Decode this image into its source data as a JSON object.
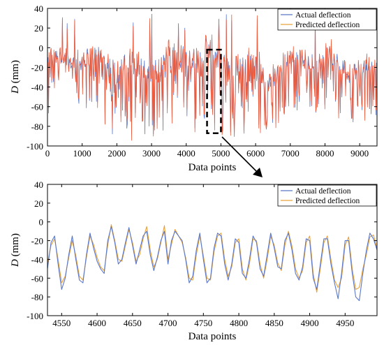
{
  "colors": {
    "actual": "#5a78c8",
    "predicted": "#e8a23c",
    "predicted_top": "#ee5a3a",
    "annotation": "#000000"
  },
  "chart_data": [
    {
      "type": "line",
      "xlabel": "Data points",
      "ylabel_var": "D",
      "ylabel_unit": " (mm)",
      "xlim": [
        0,
        9500
      ],
      "ylim": [
        -100,
        40
      ],
      "xticks": [
        "0",
        "1000",
        "2000",
        "3000",
        "4000",
        "5000",
        "6000",
        "7000",
        "8000",
        "9000"
      ],
      "xtick_values": [
        0,
        1000,
        2000,
        3000,
        4000,
        5000,
        6000,
        7000,
        8000,
        9000
      ],
      "yticks": [
        "40",
        "20",
        "0",
        "-20",
        "-40",
        "-60",
        "-80",
        "-100"
      ],
      "ytick_values": [
        40,
        20,
        0,
        -20,
        -40,
        -60,
        -80,
        -100
      ],
      "legend_position": "top-right",
      "series": [
        {
          "name": "Actual deflection"
        },
        {
          "name": "Predicted deflection"
        }
      ],
      "zoom_box_x": [
        4600,
        5000
      ],
      "zoom_box_y": [
        -87,
        -2
      ]
    },
    {
      "type": "line",
      "xlabel": "Data points",
      "ylabel_var": "D",
      "ylabel_unit": " (mm)",
      "xlim": [
        4530,
        4995
      ],
      "ylim": [
        -100,
        40
      ],
      "xticks": [
        "4550",
        "4600",
        "4650",
        "4700",
        "4750",
        "4800",
        "4850",
        "4900",
        "4950"
      ],
      "xtick_values": [
        4550,
        4600,
        4650,
        4700,
        4750,
        4800,
        4850,
        4900,
        4950
      ],
      "yticks": [
        "40",
        "20",
        "0",
        "-20",
        "-40",
        "-60",
        "-80",
        "-100"
      ],
      "ytick_values": [
        40,
        20,
        0,
        -20,
        -40,
        -60,
        -80,
        -100
      ],
      "legend_position": "top-right",
      "series": [
        {
          "name": "Actual deflection",
          "x": [
            4530,
            4535,
            4540,
            4545,
            4550,
            4555,
            4560,
            4565,
            4570,
            4575,
            4580,
            4585,
            4590,
            4595,
            4600,
            4605,
            4610,
            4615,
            4620,
            4625,
            4630,
            4635,
            4640,
            4645,
            4650,
            4655,
            4660,
            4665,
            4670,
            4675,
            4680,
            4685,
            4690,
            4695,
            4700,
            4705,
            4710,
            4715,
            4720,
            4725,
            4730,
            4735,
            4740,
            4745,
            4750,
            4755,
            4760,
            4765,
            4770,
            4775,
            4780,
            4785,
            4790,
            4795,
            4800,
            4805,
            4810,
            4815,
            4820,
            4825,
            4830,
            4835,
            4840,
            4845,
            4850,
            4855,
            4860,
            4865,
            4870,
            4875,
            4880,
            4885,
            4890,
            4895,
            4900,
            4905,
            4910,
            4915,
            4920,
            4925,
            4930,
            4935,
            4940,
            4945,
            4950,
            4955,
            4960,
            4965,
            4970,
            4975,
            4980,
            4985,
            4990,
            4995
          ],
          "values": [
            -50,
            -22,
            -15,
            -45,
            -72,
            -60,
            -35,
            -15,
            -40,
            -62,
            -65,
            -35,
            -12,
            -28,
            -42,
            -50,
            -55,
            -20,
            -5,
            -22,
            -45,
            -40,
            -22,
            -6,
            -25,
            -45,
            -30,
            -15,
            -10,
            -35,
            -52,
            -38,
            -20,
            -10,
            -45,
            -20,
            -10,
            -15,
            -20,
            -40,
            -65,
            -58,
            -30,
            -12,
            -40,
            -65,
            -60,
            -28,
            -12,
            -15,
            -45,
            -62,
            -45,
            -18,
            -22,
            -55,
            -60,
            -40,
            -15,
            -22,
            -50,
            -58,
            -35,
            -12,
            -28,
            -48,
            -50,
            -20,
            -12,
            -30,
            -55,
            -62,
            -48,
            -18,
            -20,
            -60,
            -72,
            -45,
            -18,
            -18,
            -45,
            -65,
            -82,
            -55,
            -20,
            -20,
            -55,
            -80,
            -84,
            -55,
            -30,
            -12,
            -18,
            -30
          ]
        },
        {
          "name": "Predicted deflection",
          "x": [
            4530,
            4535,
            4540,
            4545,
            4550,
            4555,
            4560,
            4565,
            4570,
            4575,
            4580,
            4585,
            4590,
            4595,
            4600,
            4605,
            4610,
            4615,
            4620,
            4625,
            4630,
            4635,
            4640,
            4645,
            4650,
            4655,
            4660,
            4665,
            4670,
            4675,
            4680,
            4685,
            4690,
            4695,
            4700,
            4705,
            4710,
            4715,
            4720,
            4725,
            4730,
            4735,
            4740,
            4745,
            4750,
            4755,
            4760,
            4765,
            4770,
            4775,
            4780,
            4785,
            4790,
            4795,
            4800,
            4805,
            4810,
            4815,
            4820,
            4825,
            4830,
            4835,
            4840,
            4845,
            4850,
            4855,
            4860,
            4865,
            4870,
            4875,
            4880,
            4885,
            4890,
            4895,
            4900,
            4905,
            4910,
            4915,
            4920,
            4925,
            4930,
            4935,
            4940,
            4945,
            4950,
            4955,
            4960,
            4965,
            4970,
            4975,
            4980,
            4985,
            4990,
            4995
          ],
          "values": [
            -44,
            -25,
            -18,
            -40,
            -65,
            -58,
            -38,
            -20,
            -36,
            -58,
            -62,
            -38,
            -15,
            -24,
            -38,
            -48,
            -52,
            -25,
            -3,
            -20,
            -40,
            -42,
            -25,
            -8,
            -22,
            -42,
            -35,
            -18,
            -5,
            -30,
            -48,
            -40,
            -22,
            -4,
            -40,
            -24,
            -8,
            -15,
            -22,
            -38,
            -60,
            -62,
            -35,
            -15,
            -36,
            -60,
            -62,
            -32,
            -15,
            -12,
            -40,
            -58,
            -48,
            -22,
            -18,
            -50,
            -62,
            -45,
            -18,
            -20,
            -45,
            -60,
            -40,
            -15,
            -25,
            -44,
            -52,
            -25,
            -10,
            -26,
            -50,
            -60,
            -52,
            -22,
            -15,
            -55,
            -75,
            -50,
            -22,
            -15,
            -40,
            -62,
            -70,
            -60,
            -25,
            -16,
            -50,
            -72,
            -70,
            -50,
            -35,
            -16,
            -14,
            -28
          ]
        }
      ]
    }
  ]
}
